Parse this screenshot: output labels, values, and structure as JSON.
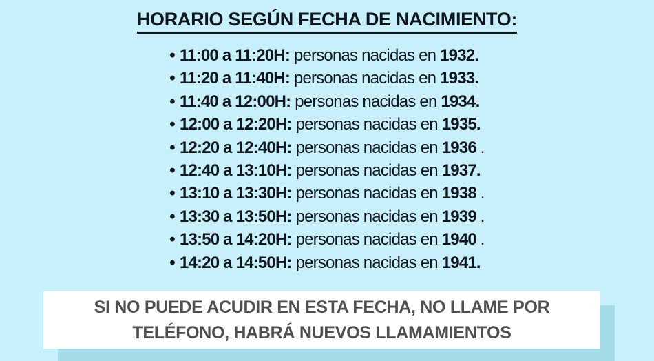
{
  "colors": {
    "bg": "#c7f0fb",
    "shadow": "#a5dbe7",
    "ink": "#10161d",
    "banner-bg": "#ffffff",
    "banner-ink": "#4f4f52"
  },
  "title": "HORARIO SEGÚN FECHA DE NACIMIENTO:",
  "schedule": {
    "bullet": "•",
    "rows": [
      {
        "time": "11:00 a 11:20H:",
        "label": "personas nacidas en",
        "year": "1932.",
        "suffix": ""
      },
      {
        "time": "11:20 a 11:40H:",
        "label": "personas nacidas en",
        "year": "1933.",
        "suffix": ""
      },
      {
        "time": "11:40 a 12:00H:",
        "label": "personas nacidas en",
        "year": "1934.",
        "suffix": ""
      },
      {
        "time": "12:00 a 12:20H:",
        "label": "personas nacidas en",
        "year": "1935.",
        "suffix": ""
      },
      {
        "time": "12:20 a 12:40H:",
        "label": "personas nacidas en",
        "year": "1936",
        "suffix": " ."
      },
      {
        "time": "12:40 a 13:10H:",
        "label": "personas nacidas en",
        "year": "1937.",
        "suffix": ""
      },
      {
        "time": "13:10 a 13:30H:",
        "label": "personas nacidas en",
        "year": "1938",
        "suffix": " ."
      },
      {
        "time": "13:30 a 13:50H:",
        "label": "personas nacidas en",
        "year": "1939",
        "suffix": " ."
      },
      {
        "time": "13:50 a 14:20H:",
        "label": "personas nacidas en",
        "year": "1940",
        "suffix": " ."
      },
      {
        "time": "14:20 a 14:50H:",
        "label": "personas nacidas en",
        "year": "1941.",
        "suffix": ""
      }
    ]
  },
  "banner": {
    "line1": "SI NO PUEDE ACUDIR EN ESTA FECHA, NO LLAME POR",
    "line2": "TELÉFONO, HABRÁ NUEVOS LLAMAMIENTOS"
  }
}
